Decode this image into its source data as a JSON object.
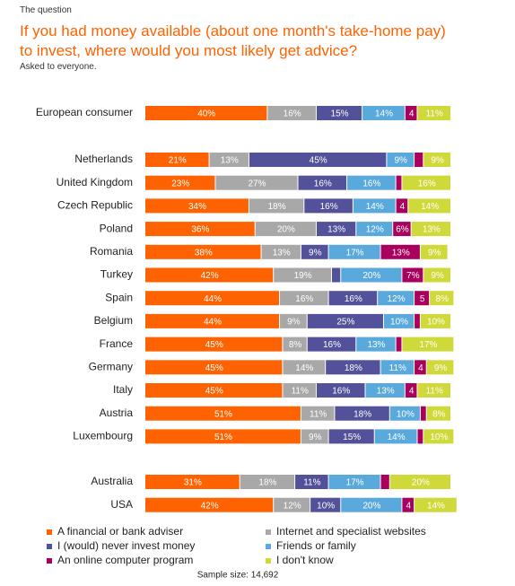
{
  "chart_data": {
    "type": "stacked-bar",
    "kicker": "The question",
    "title": "If you had money available (about one month's take-home pay) to invest, where would you most likely get advice?",
    "subtitle": "Asked to everyone.",
    "note": "Sample size: 14,692",
    "categories": [
      "European consumer",
      "Netherlands",
      "United Kingdom",
      "Czech Republic",
      "Poland",
      "Romania",
      "Turkey",
      "Spain",
      "Belgium",
      "France",
      "Germany",
      "Italy",
      "Austria",
      "Luxembourg",
      "Australia",
      "USA"
    ],
    "series": [
      {
        "name": "A financial or bank adviser",
        "color": "#ff6200",
        "values": [
          40,
          21,
          23,
          34,
          36,
          38,
          42,
          44,
          44,
          45,
          45,
          45,
          51,
          51,
          31,
          42
        ],
        "value_labels": [
          "40%",
          "21%",
          "23%",
          "34%",
          "36%",
          "38%",
          "42%",
          "44%",
          "44%",
          "45%",
          "45%",
          "45%",
          "51%",
          "51%",
          "31%",
          "42%"
        ]
      },
      {
        "name": "Internet and specialist websites",
        "color": "#a8a8a8",
        "values": [
          16,
          13,
          27,
          18,
          20,
          13,
          19,
          16,
          9,
          8,
          14,
          11,
          11,
          9,
          18,
          12
        ],
        "value_labels": [
          "16%",
          "13%",
          "27%",
          "18%",
          "20%",
          "13%",
          "19%",
          "16%",
          "9%",
          "8%",
          "14%",
          "11%",
          "11%",
          "9%",
          "18%",
          "12%"
        ]
      },
      {
        "name": "I (would) never invest money",
        "color": "#525199",
        "values": [
          15,
          45,
          16,
          16,
          13,
          9,
          3,
          16,
          25,
          16,
          18,
          16,
          18,
          15,
          11,
          10
        ],
        "value_labels": [
          "15%",
          "45%",
          "16%",
          "16%",
          "13%",
          "9%",
          null,
          "16%",
          "25%",
          "16%",
          "18%",
          "16%",
          "18%",
          "15%",
          "11%",
          "10%"
        ]
      },
      {
        "name": "Friends or family",
        "color": "#5aa9dc",
        "values": [
          14,
          9,
          16,
          14,
          12,
          17,
          20,
          12,
          10,
          13,
          11,
          13,
          10,
          14,
          17,
          20
        ],
        "value_labels": [
          "14%",
          "9%",
          "16%",
          "14%",
          "12%",
          "17%",
          "20%",
          "12%",
          "10%",
          "13%",
          "11%",
          "13%",
          "10%",
          "14%",
          "17%",
          "20%"
        ]
      },
      {
        "name": "An online computer program",
        "color": "#a8005c",
        "values": [
          4,
          3,
          2,
          4,
          6,
          13,
          7,
          5,
          2,
          2,
          4,
          4,
          2,
          2,
          3,
          4
        ],
        "value_labels": [
          "4",
          null,
          null,
          "4",
          "6%",
          "13%",
          "7%",
          "5",
          null,
          null,
          "4",
          "4",
          null,
          null,
          null,
          "4"
        ]
      },
      {
        "name": "I don't know",
        "color": "#d0d93a",
        "values": [
          11,
          9,
          16,
          14,
          13,
          9,
          9,
          8,
          10,
          17,
          9,
          11,
          8,
          10,
          20,
          14
        ],
        "value_labels": [
          "11%",
          "9%",
          "16%",
          "14%",
          "13%",
          "9%",
          "9%",
          "8%",
          "10%",
          "17%",
          "9%",
          "11%",
          "8%",
          "10%",
          "20%",
          "14%"
        ]
      }
    ]
  }
}
